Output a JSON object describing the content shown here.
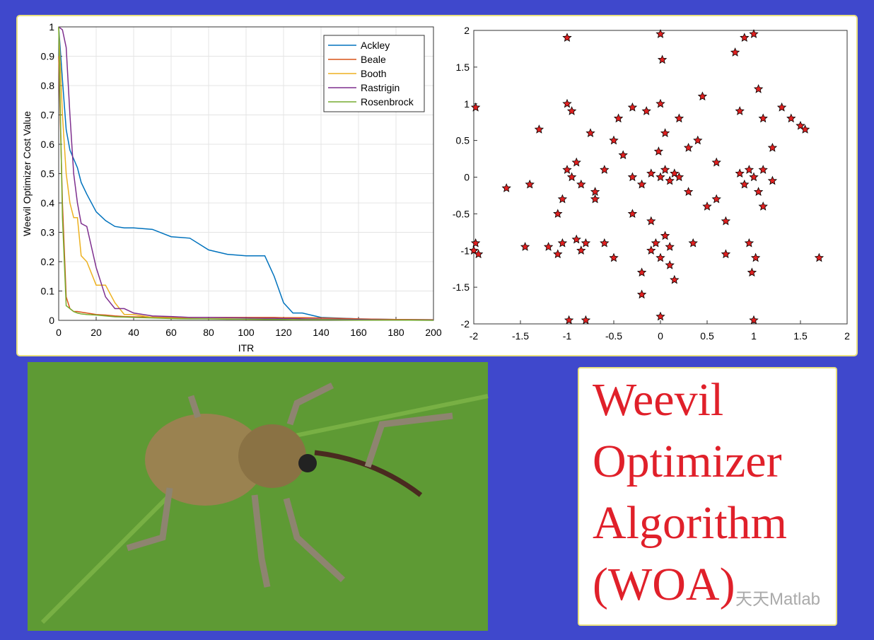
{
  "chart_data": [
    {
      "type": "line",
      "xlabel": "ITR",
      "ylabel": "Weevil Optimizer Cost Value",
      "x": [
        0,
        2,
        4,
        6,
        8,
        10,
        12,
        15,
        20,
        25,
        30,
        35,
        40,
        50,
        60,
        70,
        80,
        90,
        100,
        110,
        115,
        120,
        125,
        130,
        140,
        160,
        180,
        200
      ],
      "series": [
        {
          "name": "Ackley",
          "color": "#0072bd",
          "values": [
            1,
            0.82,
            0.65,
            0.58,
            0.55,
            0.52,
            0.47,
            0.43,
            0.37,
            0.34,
            0.32,
            0.315,
            0.315,
            0.31,
            0.285,
            0.28,
            0.24,
            0.225,
            0.22,
            0.22,
            0.15,
            0.06,
            0.025,
            0.025,
            0.01,
            0.005,
            0.003,
            0.002
          ]
        },
        {
          "name": "Beale",
          "color": "#d95319",
          "values": [
            0.9,
            0.4,
            0.08,
            0.04,
            0.03,
            0.03,
            0.028,
            0.025,
            0.02,
            0.018,
            0.015,
            0.013,
            0.012,
            0.011,
            0.01,
            0.01,
            0.01,
            0.01,
            0.01,
            0.01,
            0.01,
            0.009,
            0.009,
            0.009,
            0.008,
            0.005,
            0.003,
            0.002
          ]
        },
        {
          "name": "Booth",
          "color": "#edb120",
          "values": [
            1,
            0.7,
            0.5,
            0.4,
            0.35,
            0.35,
            0.22,
            0.2,
            0.12,
            0.12,
            0.06,
            0.02,
            0.02,
            0.01,
            0.008,
            0.006,
            0.005,
            0.005,
            0.004,
            0.004,
            0.004,
            0.003,
            0.003,
            0.003,
            0.002,
            0.002,
            0.001,
            0.001
          ]
        },
        {
          "name": "Rastrigin",
          "color": "#7e2f8e",
          "values": [
            1,
            0.99,
            0.93,
            0.7,
            0.5,
            0.4,
            0.33,
            0.32,
            0.18,
            0.08,
            0.04,
            0.04,
            0.025,
            0.015,
            0.013,
            0.01,
            0.01,
            0.009,
            0.008,
            0.007,
            0.007,
            0.006,
            0.006,
            0.005,
            0.004,
            0.003,
            0.001,
            0.001
          ]
        },
        {
          "name": "Rosenbrock",
          "color": "#77ac30",
          "values": [
            1,
            0.35,
            0.05,
            0.04,
            0.03,
            0.025,
            0.022,
            0.02,
            0.018,
            0.015,
            0.012,
            0.011,
            0.01,
            0.008,
            0.006,
            0.005,
            0.005,
            0.004,
            0.004,
            0.003,
            0.003,
            0.003,
            0.002,
            0.002,
            0.002,
            0.001,
            0.001,
            0
          ]
        }
      ],
      "xlim": [
        0,
        200
      ],
      "xticks": [
        0,
        20,
        40,
        60,
        80,
        100,
        120,
        140,
        160,
        180,
        200
      ],
      "ylim": [
        0,
        1
      ],
      "yticks": [
        0,
        0.1,
        0.2,
        0.3,
        0.4,
        0.5,
        0.6,
        0.7,
        0.8,
        0.9,
        1
      ],
      "grid": true,
      "legend": "northeast"
    },
    {
      "type": "scatter",
      "color": "#e02020",
      "edgecolor": "#000000",
      "x": [
        -2,
        -1.98,
        -1.95,
        -1.98,
        -1.45,
        -1.4,
        -1.2,
        -1.1,
        -1.05,
        -1,
        -0.95,
        -0.9,
        -0.85,
        -1,
        -0.95,
        -1.05,
        -0.8,
        -0.85,
        -0.9,
        -0.7,
        -0.6,
        -0.5,
        -0.4,
        -0.3,
        -0.2,
        -0.1,
        0,
        0.05,
        0.1,
        0.15,
        0.2,
        0.3,
        -0.05,
        -0.1,
        0,
        0.05,
        0.1,
        -0.15,
        0,
        0.2,
        -0.2,
        0,
        0.1,
        -0.1,
        0.05,
        0,
        0.02,
        -0.02,
        0.4,
        0.5,
        0.6,
        0.7,
        0.85,
        0.9,
        0.95,
        1,
        1.05,
        1.1,
        1.2,
        1.3,
        0.9,
        1,
        1.1,
        1.05,
        0.95,
        1,
        1.02,
        0.98,
        1.4,
        1.5,
        1.55,
        1.7,
        0.8,
        0.85,
        0.7,
        -0.8,
        -0.75,
        -1,
        -0.98,
        -1.3,
        -0.6,
        -0.5,
        -0.3,
        0.3,
        0.35,
        -0.3,
        -1.65,
        -0.2,
        0.15,
        1.2,
        -1.1,
        0.6,
        -0.45,
        0.45,
        1.1,
        -0.7
      ],
      "y": [
        -1,
        -0.9,
        -1.05,
        0.95,
        -0.95,
        -0.1,
        -0.95,
        -1.05,
        -0.9,
        0.1,
        0,
        0.2,
        -0.1,
        1,
        0.9,
        -0.3,
        -0.9,
        -1,
        -0.85,
        -0.2,
        0.1,
        -1.1,
        0.3,
        0,
        -0.1,
        0.05,
        0,
        0.1,
        -0.05,
        0.05,
        0,
        -0.2,
        -0.9,
        -1,
        -1.1,
        -0.8,
        -0.95,
        0.9,
        1,
        0.8,
        -1.3,
        1.95,
        -1.2,
        -0.6,
        0.6,
        -1.9,
        1.6,
        0.35,
        0.5,
        -0.4,
        0.2,
        -0.6,
        0.05,
        -0.1,
        0.1,
        0,
        -0.2,
        0.1,
        -0.05,
        0.95,
        1.9,
        1.95,
        0.8,
        1.2,
        -0.9,
        -1.95,
        -1.1,
        -1.3,
        0.8,
        0.7,
        0.65,
        -1.1,
        1.7,
        0.9,
        -1.05,
        -1.95,
        0.6,
        1.9,
        -1.95,
        0.65,
        -0.9,
        0.5,
        -0.5,
        0.4,
        -0.9,
        0.95,
        -0.15,
        -1.6,
        -1.4,
        0.4,
        -0.5,
        -0.3,
        0.8,
        1.1,
        -0.4,
        -0.3
      ],
      "xlim": [
        -2,
        2
      ],
      "xticks": [
        -2,
        -1.5,
        -1,
        -0.5,
        0,
        0.5,
        1,
        1.5,
        2
      ],
      "ylim": [
        -2,
        2
      ],
      "yticks": [
        -2,
        -1.5,
        -1,
        -0.5,
        0,
        0.5,
        1,
        1.5,
        2
      ]
    }
  ],
  "poster": {
    "title_lines": [
      "Weevil",
      "Optimizer",
      "Algorithm",
      "(WOA)"
    ],
    "watermark": "天天Matlab"
  }
}
